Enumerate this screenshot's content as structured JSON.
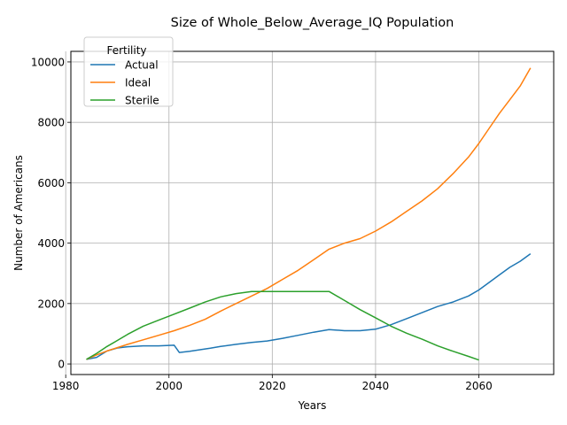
{
  "chart_data": {
    "type": "line",
    "title": "Size of Whole_Below_Average_IQ Population",
    "xlabel": "Years",
    "ylabel": "Number of Americans",
    "xlim": [
      1981.0,
      2074.5
    ],
    "ylim": [
      -350,
      10350
    ],
    "xticks": [
      1980,
      2000,
      2020,
      2040,
      2060
    ],
    "yticks": [
      0,
      2000,
      4000,
      6000,
      8000,
      10000
    ],
    "grid": true,
    "legend": {
      "title": "Fertility",
      "placement": "top-left"
    },
    "series": [
      {
        "name": "Actual",
        "color": "#1f77b4",
        "x": [
          1984,
          1986,
          1988,
          1990,
          1992,
          1995,
          1998,
          2001,
          2002,
          2004,
          2006,
          2008,
          2010,
          2013,
          2016,
          2019,
          2022,
          2025,
          2028,
          2031,
          2034,
          2037,
          2040,
          2043,
          2046,
          2049,
          2052,
          2055,
          2058,
          2060,
          2062,
          2064,
          2066,
          2068,
          2070
        ],
        "y": [
          150,
          220,
          430,
          530,
          570,
          600,
          600,
          620,
          380,
          420,
          470,
          520,
          580,
          650,
          710,
          760,
          850,
          950,
          1050,
          1140,
          1100,
          1100,
          1150,
          1300,
          1500,
          1700,
          1900,
          2050,
          2250,
          2450,
          2700,
          2950,
          3200,
          3400,
          3650
        ]
      },
      {
        "name": "Ideal",
        "color": "#ff7f0e",
        "x": [
          1984,
          1986,
          1988,
          1990,
          1992,
          1995,
          1998,
          2001,
          2004,
          2007,
          2010,
          2013,
          2016,
          2019,
          2022,
          2025,
          2028,
          2031,
          2034,
          2037,
          2040,
          2043,
          2046,
          2049,
          2052,
          2055,
          2058,
          2060,
          2062,
          2064,
          2066,
          2068,
          2070
        ],
        "y": [
          150,
          300,
          430,
          540,
          650,
          800,
          950,
          1100,
          1280,
          1480,
          1750,
          2000,
          2250,
          2500,
          2800,
          3100,
          3450,
          3800,
          4000,
          4150,
          4400,
          4700,
          5050,
          5400,
          5800,
          6300,
          6850,
          7300,
          7800,
          8300,
          8750,
          9200,
          9800
        ]
      },
      {
        "name": "Sterile",
        "color": "#2ca02c",
        "x": [
          1984,
          1986,
          1988,
          1990,
          1992,
          1995,
          1998,
          2001,
          2004,
          2007,
          2010,
          2013,
          2016,
          2019,
          2022,
          2025,
          2028,
          2031,
          2034,
          2037,
          2040,
          2043,
          2046,
          2049,
          2052,
          2055,
          2058,
          2060
        ],
        "y": [
          150,
          350,
          580,
          780,
          980,
          1250,
          1450,
          1650,
          1850,
          2050,
          2220,
          2330,
          2400,
          2400,
          2400,
          2400,
          2400,
          2400,
          2100,
          1800,
          1530,
          1250,
          1020,
          820,
          600,
          420,
          250,
          130
        ]
      }
    ]
  }
}
